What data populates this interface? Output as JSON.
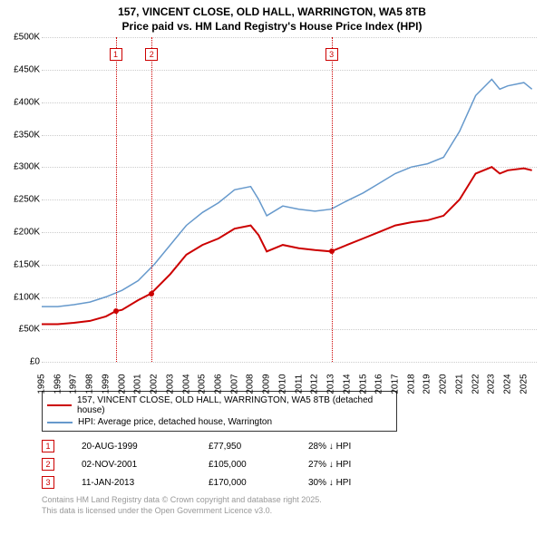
{
  "title_line1": "157, VINCENT CLOSE, OLD HALL, WARRINGTON, WA5 8TB",
  "title_line2": "Price paid vs. HM Land Registry's House Price Index (HPI)",
  "chart": {
    "type": "line",
    "xlim": [
      1995,
      2025.8
    ],
    "ylim": [
      0,
      500000
    ],
    "x_years": [
      1995,
      1996,
      1997,
      1998,
      1999,
      2000,
      2001,
      2002,
      2003,
      2004,
      2005,
      2006,
      2007,
      2008,
      2009,
      2010,
      2011,
      2012,
      2013,
      2014,
      2015,
      2016,
      2017,
      2018,
      2019,
      2020,
      2021,
      2022,
      2023,
      2024,
      2025
    ],
    "y_ticks": [
      0,
      50000,
      100000,
      150000,
      200000,
      250000,
      300000,
      350000,
      400000,
      450000,
      500000
    ],
    "y_tick_labels": [
      "£0",
      "£50K",
      "£100K",
      "£150K",
      "£200K",
      "£250K",
      "£300K",
      "£350K",
      "£400K",
      "£450K",
      "£500K"
    ],
    "grid_color": "#cccccc",
    "axis_fontsize": 10,
    "series": [
      {
        "name": "property",
        "color": "#cc0000",
        "width": 2,
        "data": [
          [
            1995,
            58000
          ],
          [
            1996,
            58000
          ],
          [
            1997,
            60000
          ],
          [
            1998,
            63000
          ],
          [
            1999,
            70000
          ],
          [
            1999.6,
            77950
          ],
          [
            2000,
            80000
          ],
          [
            2001,
            95000
          ],
          [
            2001.8,
            105000
          ],
          [
            2002,
            110000
          ],
          [
            2003,
            135000
          ],
          [
            2004,
            165000
          ],
          [
            2005,
            180000
          ],
          [
            2006,
            190000
          ],
          [
            2007,
            205000
          ],
          [
            2008,
            210000
          ],
          [
            2008.5,
            195000
          ],
          [
            2009,
            170000
          ],
          [
            2010,
            180000
          ],
          [
            2011,
            175000
          ],
          [
            2012,
            172000
          ],
          [
            2013,
            170000
          ],
          [
            2014,
            180000
          ],
          [
            2015,
            190000
          ],
          [
            2016,
            200000
          ],
          [
            2017,
            210000
          ],
          [
            2018,
            215000
          ],
          [
            2019,
            218000
          ],
          [
            2020,
            225000
          ],
          [
            2021,
            250000
          ],
          [
            2022,
            290000
          ],
          [
            2023,
            300000
          ],
          [
            2023.5,
            290000
          ],
          [
            2024,
            295000
          ],
          [
            2025,
            298000
          ],
          [
            2025.5,
            295000
          ]
        ]
      },
      {
        "name": "hpi",
        "color": "#6699cc",
        "width": 1.5,
        "data": [
          [
            1995,
            85000
          ],
          [
            1996,
            85000
          ],
          [
            1997,
            88000
          ],
          [
            1998,
            92000
          ],
          [
            1999,
            100000
          ],
          [
            2000,
            110000
          ],
          [
            2001,
            125000
          ],
          [
            2002,
            150000
          ],
          [
            2003,
            180000
          ],
          [
            2004,
            210000
          ],
          [
            2005,
            230000
          ],
          [
            2006,
            245000
          ],
          [
            2007,
            265000
          ],
          [
            2008,
            270000
          ],
          [
            2008.5,
            250000
          ],
          [
            2009,
            225000
          ],
          [
            2010,
            240000
          ],
          [
            2011,
            235000
          ],
          [
            2012,
            232000
          ],
          [
            2013,
            235000
          ],
          [
            2014,
            248000
          ],
          [
            2015,
            260000
          ],
          [
            2016,
            275000
          ],
          [
            2017,
            290000
          ],
          [
            2018,
            300000
          ],
          [
            2019,
            305000
          ],
          [
            2020,
            315000
          ],
          [
            2021,
            355000
          ],
          [
            2022,
            410000
          ],
          [
            2023,
            435000
          ],
          [
            2023.5,
            420000
          ],
          [
            2024,
            425000
          ],
          [
            2025,
            430000
          ],
          [
            2025.5,
            420000
          ]
        ]
      }
    ],
    "markers": [
      {
        "n": "1",
        "year": 1999.6,
        "price": 77950,
        "color": "#cc0000"
      },
      {
        "n": "2",
        "year": 2001.84,
        "price": 105000,
        "color": "#cc0000"
      },
      {
        "n": "3",
        "year": 2013.03,
        "price": 170000,
        "color": "#cc0000"
      }
    ]
  },
  "legend": {
    "items": [
      {
        "color": "#cc0000",
        "label": "157, VINCENT CLOSE, OLD HALL, WARRINGTON, WA5 8TB (detached house)"
      },
      {
        "color": "#6699cc",
        "label": "HPI: Average price, detached house, Warrington"
      }
    ]
  },
  "sales": [
    {
      "n": "1",
      "date": "20-AUG-1999",
      "price": "£77,950",
      "diff": "28% ↓ HPI",
      "color": "#cc0000"
    },
    {
      "n": "2",
      "date": "02-NOV-2001",
      "price": "£105,000",
      "diff": "27% ↓ HPI",
      "color": "#cc0000"
    },
    {
      "n": "3",
      "date": "11-JAN-2013",
      "price": "£170,000",
      "diff": "30% ↓ HPI",
      "color": "#cc0000"
    }
  ],
  "attribution_line1": "Contains HM Land Registry data © Crown copyright and database right 2025.",
  "attribution_line2": "This data is licensed under the Open Government Licence v3.0."
}
